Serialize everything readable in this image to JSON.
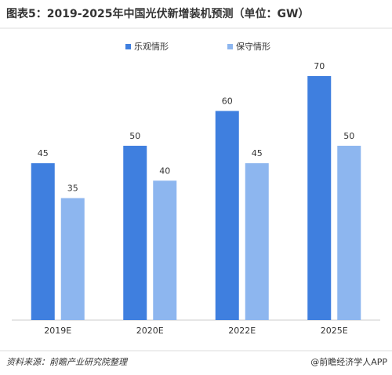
{
  "chart_data": {
    "type": "bar",
    "title": "图表5：2019-2025年中国光伏新增装机预测（单位：GW）",
    "categories": [
      "2019E",
      "2020E",
      "2022E",
      "2025E"
    ],
    "series": [
      {
        "name": "乐观情形",
        "color": "#3f7fdf",
        "values": [
          45,
          50,
          60,
          70
        ]
      },
      {
        "name": "保守情形",
        "color": "#8db6ef",
        "values": [
          35,
          40,
          45,
          50
        ]
      }
    ],
    "legend": "top",
    "source": "资料来源：前瞻产业研究院整理",
    "credit": "@前瞻经济学人APP"
  }
}
